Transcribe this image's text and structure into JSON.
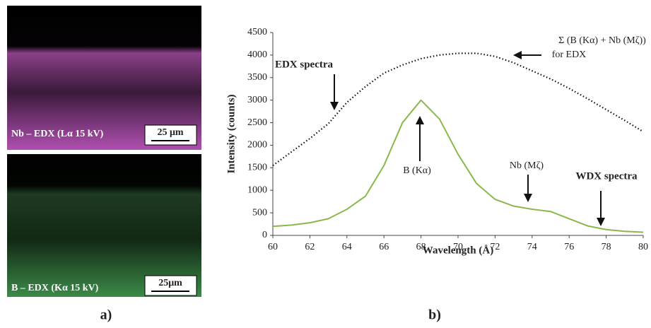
{
  "images": [
    {
      "label": "Nb – EDX (Lα 15 kV)",
      "scale_bar": "25 μm"
    },
    {
      "label": "B – EDX (Kα 15 kV)",
      "scale_bar": "25μm"
    }
  ],
  "panel_labels": [
    "a)",
    "b)"
  ],
  "chart_data": {
    "type": "line",
    "x_label": "Wavelength (Å)",
    "y_label": "Intensity (counts)",
    "x": [
      60,
      61,
      62,
      63,
      64,
      65,
      66,
      67,
      68,
      69,
      70,
      71,
      72,
      73,
      74,
      75,
      76,
      77,
      78,
      79,
      80
    ],
    "series": [
      {
        "name": "EDX spectra",
        "color": "#111111",
        "dash": true,
        "values": [
          1550,
          1850,
          2150,
          2480,
          2950,
          3300,
          3600,
          3780,
          3920,
          4000,
          4040,
          4040,
          3970,
          3830,
          3650,
          3470,
          3260,
          3030,
          2790,
          2550,
          2300
        ]
      },
      {
        "name": "WDX spectra",
        "color": "#8ab84a",
        "dash": false,
        "values": [
          200,
          230,
          280,
          370,
          580,
          870,
          1550,
          2500,
          3000,
          2580,
          1800,
          1150,
          800,
          650,
          580,
          530,
          370,
          210,
          130,
          90,
          70
        ]
      }
    ],
    "annotations": [
      "Σ (B (Kα) + Nb (Mζ))",
      "for EDX",
      "B (Kα)",
      "Nb (Mζ)"
    ],
    "xlim": [
      60,
      80
    ],
    "xticks": [
      60,
      62,
      64,
      66,
      68,
      70,
      72,
      74,
      76,
      78,
      80
    ],
    "ylim": [
      0,
      4500
    ],
    "yticks": [
      0,
      500,
      1000,
      1500,
      2000,
      2500,
      3000,
      3500,
      4000,
      4500
    ]
  }
}
